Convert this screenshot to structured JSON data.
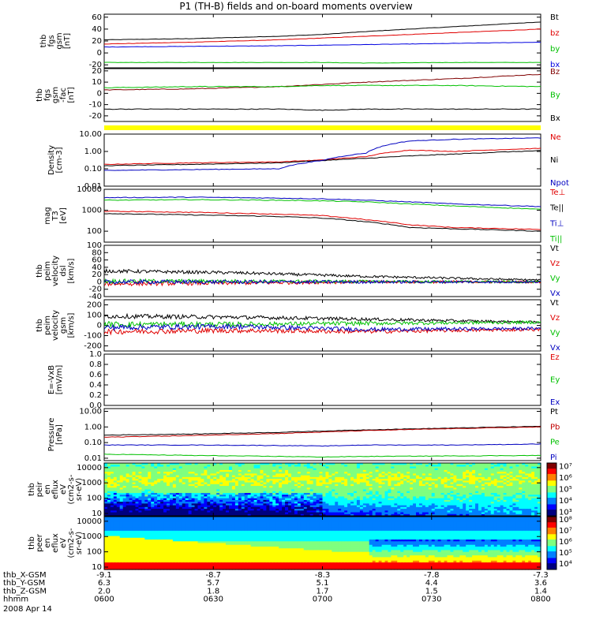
{
  "figure": {
    "title": "P1 (TH-B) fields and on-board moments overview",
    "date": "2008 Apr 14"
  },
  "chart_data": [
    {
      "type": "line",
      "id": "fgs",
      "ylabel": [
        "thb",
        "fgs",
        "gsm",
        "[nT]"
      ],
      "ylim": [
        -25,
        65
      ],
      "yticks": [
        -20,
        0,
        20,
        40,
        60
      ],
      "series": [
        {
          "name": "Bt",
          "color": "#000000",
          "x": [
            0,
            0.2,
            0.4,
            0.5,
            0.6,
            0.8,
            1.0
          ],
          "values": [
            22,
            24,
            28,
            31,
            36,
            44,
            52
          ]
        },
        {
          "name": "bz",
          "color": "#e00000",
          "x": [
            0,
            0.2,
            0.4,
            0.5,
            0.6,
            0.8,
            1.0
          ],
          "values": [
            15,
            18,
            22,
            25,
            28,
            34,
            40
          ]
        },
        {
          "name": "by",
          "color": "#00c000",
          "x": [
            0,
            0.2,
            0.4,
            0.5,
            0.6,
            0.8,
            1.0
          ],
          "values": [
            -16,
            -16,
            -16,
            -16,
            -17,
            -16,
            -16
          ]
        },
        {
          "name": "bx",
          "color": "#0000e0",
          "x": [
            0,
            0.2,
            0.4,
            0.5,
            0.6,
            0.8,
            1.0
          ],
          "values": [
            10,
            11,
            12,
            13,
            14,
            16,
            18
          ]
        }
      ]
    },
    {
      "type": "line",
      "id": "fgs-gsm-fac",
      "ylabel": [
        "thb",
        "fgs",
        "gsm",
        "-fac",
        "[nT]"
      ],
      "ylim": [
        -25,
        22
      ],
      "yticks": [
        -20,
        -10,
        0,
        10,
        20
      ],
      "series": [
        {
          "name": "Bz",
          "color": "#800000",
          "x": [
            0,
            0.2,
            0.4,
            0.5,
            0.6,
            0.8,
            1.0
          ],
          "values": [
            3,
            4,
            6,
            8,
            10,
            13,
            17
          ]
        },
        {
          "name": "By",
          "color": "#00c000",
          "x": [
            0,
            0.2,
            0.4,
            0.5,
            0.6,
            0.8,
            1.0
          ],
          "values": [
            5,
            6,
            6,
            7,
            7,
            7,
            6
          ]
        },
        {
          "name": "Bx",
          "color": "#000000",
          "x": [
            0,
            0.2,
            0.4,
            0.5,
            0.6,
            0.8,
            1.0
          ],
          "values": [
            -14,
            -14,
            -14,
            -15,
            -14,
            -14,
            -14
          ]
        }
      ]
    },
    {
      "type": "line",
      "id": "density",
      "ylog": true,
      "ylabel": [
        "Density",
        "[cm-3]"
      ],
      "ylim": [
        0.01,
        10
      ],
      "yticks": [
        0.01,
        0.1,
        1,
        10
      ],
      "yticklabels": [
        "0.01",
        "0.10",
        "1.00",
        "10.00"
      ],
      "series": [
        {
          "name": "Ne",
          "color": "#e00000",
          "x": [
            0,
            0.2,
            0.4,
            0.5,
            0.6,
            0.7,
            0.8,
            1.0
          ],
          "values": [
            0.18,
            0.22,
            0.25,
            0.32,
            0.5,
            1.2,
            1.0,
            1.5
          ]
        },
        {
          "name": "Ni",
          "color": "#000000",
          "x": [
            0,
            0.2,
            0.4,
            0.5,
            0.6,
            0.7,
            0.8,
            1.0
          ],
          "values": [
            0.15,
            0.18,
            0.22,
            0.3,
            0.4,
            0.55,
            0.7,
            1.1
          ]
        },
        {
          "name": "Npot",
          "color": "#0000c0",
          "x": [
            0,
            0.2,
            0.4,
            0.5,
            0.6,
            0.7,
            0.8,
            1.0
          ],
          "values": [
            0.08,
            0.09,
            0.1,
            0.3,
            0.8,
            4.0,
            5.0,
            6.0
          ]
        }
      ]
    },
    {
      "type": "line",
      "id": "temperature",
      "ylog": true,
      "ylabel": [
        "mag",
        "T3",
        "[eV]"
      ],
      "ylim": [
        30,
        10000
      ],
      "yticks": [
        100,
        1000,
        10000
      ],
      "yticklabels": [
        "100",
        "1000",
        "10000"
      ],
      "series": [
        {
          "name": "Te⊥",
          "color": "#e00000",
          "x": [
            0,
            0.2,
            0.4,
            0.5,
            0.6,
            0.7,
            0.8,
            1.0
          ],
          "values": [
            900,
            800,
            650,
            550,
            350,
            200,
            150,
            120
          ]
        },
        {
          "name": "Te||",
          "color": "#000000",
          "x": [
            0,
            0.2,
            0.4,
            0.5,
            0.6,
            0.7,
            0.8,
            1.0
          ],
          "values": [
            700,
            600,
            500,
            420,
            280,
            150,
            130,
            100
          ]
        },
        {
          "name": "Ti⊥",
          "color": "#0000c0",
          "x": [
            0,
            0.2,
            0.4,
            0.5,
            0.6,
            0.7,
            0.8,
            1.0
          ],
          "values": [
            4000,
            4200,
            3800,
            3500,
            3000,
            2500,
            2000,
            1500
          ]
        },
        {
          "name": "Ti||",
          "color": "#00c000",
          "x": [
            0,
            0.2,
            0.4,
            0.5,
            0.6,
            0.7,
            0.8,
            1.0
          ],
          "values": [
            3000,
            3200,
            3000,
            2800,
            2500,
            2000,
            1600,
            1100
          ]
        }
      ]
    },
    {
      "type": "line",
      "id": "peim-velocity",
      "ylabel": [
        "thb",
        "peim",
        "velocity",
        "dsl",
        "[km/s]"
      ],
      "ylim": [
        -40,
        100
      ],
      "yticks": [
        -40,
        -20,
        0,
        20,
        40,
        60,
        80,
        100
      ],
      "series": [
        {
          "name": "Vt",
          "color": "#000000",
          "x": [
            0,
            0.3,
            0.6,
            1.0
          ],
          "values": [
            30,
            25,
            15,
            5
          ]
        },
        {
          "name": "Vz",
          "color": "#e00000",
          "x": [
            0,
            0.3,
            0.6,
            1.0
          ],
          "values": [
            -5,
            -3,
            0,
            0
          ]
        },
        {
          "name": "Vy",
          "color": "#00c000",
          "x": [
            0,
            0.3,
            0.6,
            1.0
          ],
          "values": [
            2,
            2,
            1,
            0
          ]
        },
        {
          "name": "Vx",
          "color": "#0000c0",
          "x": [
            0,
            0.3,
            0.6,
            1.0
          ],
          "values": [
            0,
            0,
            0,
            0
          ]
        }
      ]
    },
    {
      "type": "line",
      "id": "peim-velocity-gsm",
      "ylabel": [
        "thb",
        "peim",
        "velocity",
        "gsm",
        "[km/s]"
      ],
      "ylim": [
        -250,
        250
      ],
      "yticks": [
        -200,
        -100,
        0,
        100,
        200
      ],
      "series": [
        {
          "name": "Vt",
          "color": "#000000",
          "x": [
            0,
            0.3,
            0.6,
            1.0
          ],
          "values": [
            90,
            80,
            60,
            30
          ]
        },
        {
          "name": "Vz",
          "color": "#e00000",
          "x": [
            0,
            0.3,
            0.6,
            1.0
          ],
          "values": [
            -60,
            -50,
            -60,
            -40
          ]
        },
        {
          "name": "Vy",
          "color": "#00c000",
          "x": [
            0,
            0.3,
            0.6,
            1.0
          ],
          "values": [
            10,
            10,
            20,
            30
          ]
        },
        {
          "name": "Vx",
          "color": "#0000c0",
          "x": [
            0,
            0.3,
            0.6,
            1.0
          ],
          "values": [
            -20,
            -10,
            -40,
            -30
          ]
        }
      ]
    },
    {
      "type": "line",
      "id": "efield",
      "ylabel": [
        "E=-VxB",
        "[mV/m]"
      ],
      "ylim": [
        0,
        1
      ],
      "yticks": [
        0,
        0.2,
        0.4,
        0.6,
        0.8,
        1.0
      ],
      "yticklabels": [
        "0.0",
        "0.2",
        "0.4",
        "0.6",
        "0.8",
        "1.0"
      ],
      "series": [
        {
          "name": "Ez",
          "color": "#e00000",
          "x": [],
          "values": []
        },
        {
          "name": "Ey",
          "color": "#00c000",
          "x": [],
          "values": []
        },
        {
          "name": "Ex",
          "color": "#0000c0",
          "x": [],
          "values": []
        }
      ]
    },
    {
      "type": "line",
      "id": "pressure",
      "ylog": true,
      "ylabel": [
        "Pressure",
        "[nPa]"
      ],
      "ylim": [
        0.007,
        15
      ],
      "yticks": [
        0.01,
        0.1,
        1,
        10
      ],
      "yticklabels": [
        "0.01",
        "0.10",
        "1.00",
        "10.00"
      ],
      "series": [
        {
          "name": "Pt",
          "color": "#000000",
          "x": [
            0,
            0.2,
            0.4,
            0.5,
            0.6,
            0.8,
            1.0
          ],
          "values": [
            0.3,
            0.35,
            0.45,
            0.55,
            0.65,
            0.85,
            1.1
          ]
        },
        {
          "name": "Pb",
          "color": "#c00000",
          "x": [
            0,
            0.2,
            0.4,
            0.5,
            0.6,
            0.8,
            1.0
          ],
          "values": [
            0.22,
            0.28,
            0.38,
            0.47,
            0.58,
            0.78,
            1.0
          ]
        },
        {
          "name": "Pe",
          "color": "#00c000",
          "x": [
            0,
            0.2,
            0.4,
            0.5,
            0.6,
            0.8,
            1.0
          ],
          "values": [
            0.018,
            0.015,
            0.013,
            0.012,
            0.013,
            0.014,
            0.015
          ]
        },
        {
          "name": "Pi",
          "color": "#0000c0",
          "x": [
            0,
            0.2,
            0.4,
            0.5,
            0.6,
            0.8,
            1.0
          ],
          "values": [
            0.07,
            0.07,
            0.065,
            0.06,
            0.07,
            0.07,
            0.08
          ]
        }
      ]
    },
    {
      "type": "heatmap",
      "id": "peir",
      "ylog": true,
      "ylabel": [
        "thb",
        "peir",
        "en",
        "eflux",
        "eV",
        "(cm2-s-",
        "sr-eV)"
      ],
      "ylim": [
        7,
        20000
      ],
      "yticks": [
        10,
        100,
        1000,
        10000
      ],
      "yticklabels": [
        "10",
        "100",
        "1000",
        "10000"
      ],
      "colorbar": {
        "ticks": [
          3,
          4,
          5,
          6,
          7
        ],
        "labels": [
          "10³",
          "10⁴",
          "10⁵",
          "10⁶",
          "10⁷"
        ],
        "range": [
          2.7,
          7.3
        ]
      }
    },
    {
      "type": "heatmap",
      "id": "peer",
      "ylog": true,
      "ylabel": [
        "thb",
        "peer",
        "en",
        "eflux",
        "eV",
        "(cm2-s-",
        "sr-eV)"
      ],
      "ylim": [
        7,
        20000
      ],
      "yticks": [
        10,
        100,
        1000,
        10000
      ],
      "yticklabels": [
        "10",
        "100",
        "1000",
        "10000"
      ],
      "colorbar": {
        "ticks": [
          4,
          5,
          6,
          7,
          8
        ],
        "labels": [
          "10⁴",
          "10⁵",
          "10⁶",
          "10⁷",
          "10⁸"
        ],
        "range": [
          3.5,
          8.3
        ]
      }
    }
  ],
  "xaxis": {
    "ticks": [
      0,
      0.25,
      0.5,
      0.75,
      1.0
    ],
    "rows": [
      {
        "label": "thb_X-GSM",
        "values": [
          "-9.1",
          "-8.7",
          "-8.3",
          "-7.8",
          "-7.3"
        ]
      },
      {
        "label": "thb_Y-GSM",
        "values": [
          "6.3",
          "5.7",
          "5.1",
          "4.4",
          "3.6"
        ]
      },
      {
        "label": "thb_Z-GSM",
        "values": [
          "2.0",
          "1.8",
          "1.7",
          "1.5",
          "1.4"
        ]
      },
      {
        "label": "hhmm",
        "values": [
          "0600",
          "0630",
          "0700",
          "0730",
          "0800"
        ]
      }
    ]
  }
}
